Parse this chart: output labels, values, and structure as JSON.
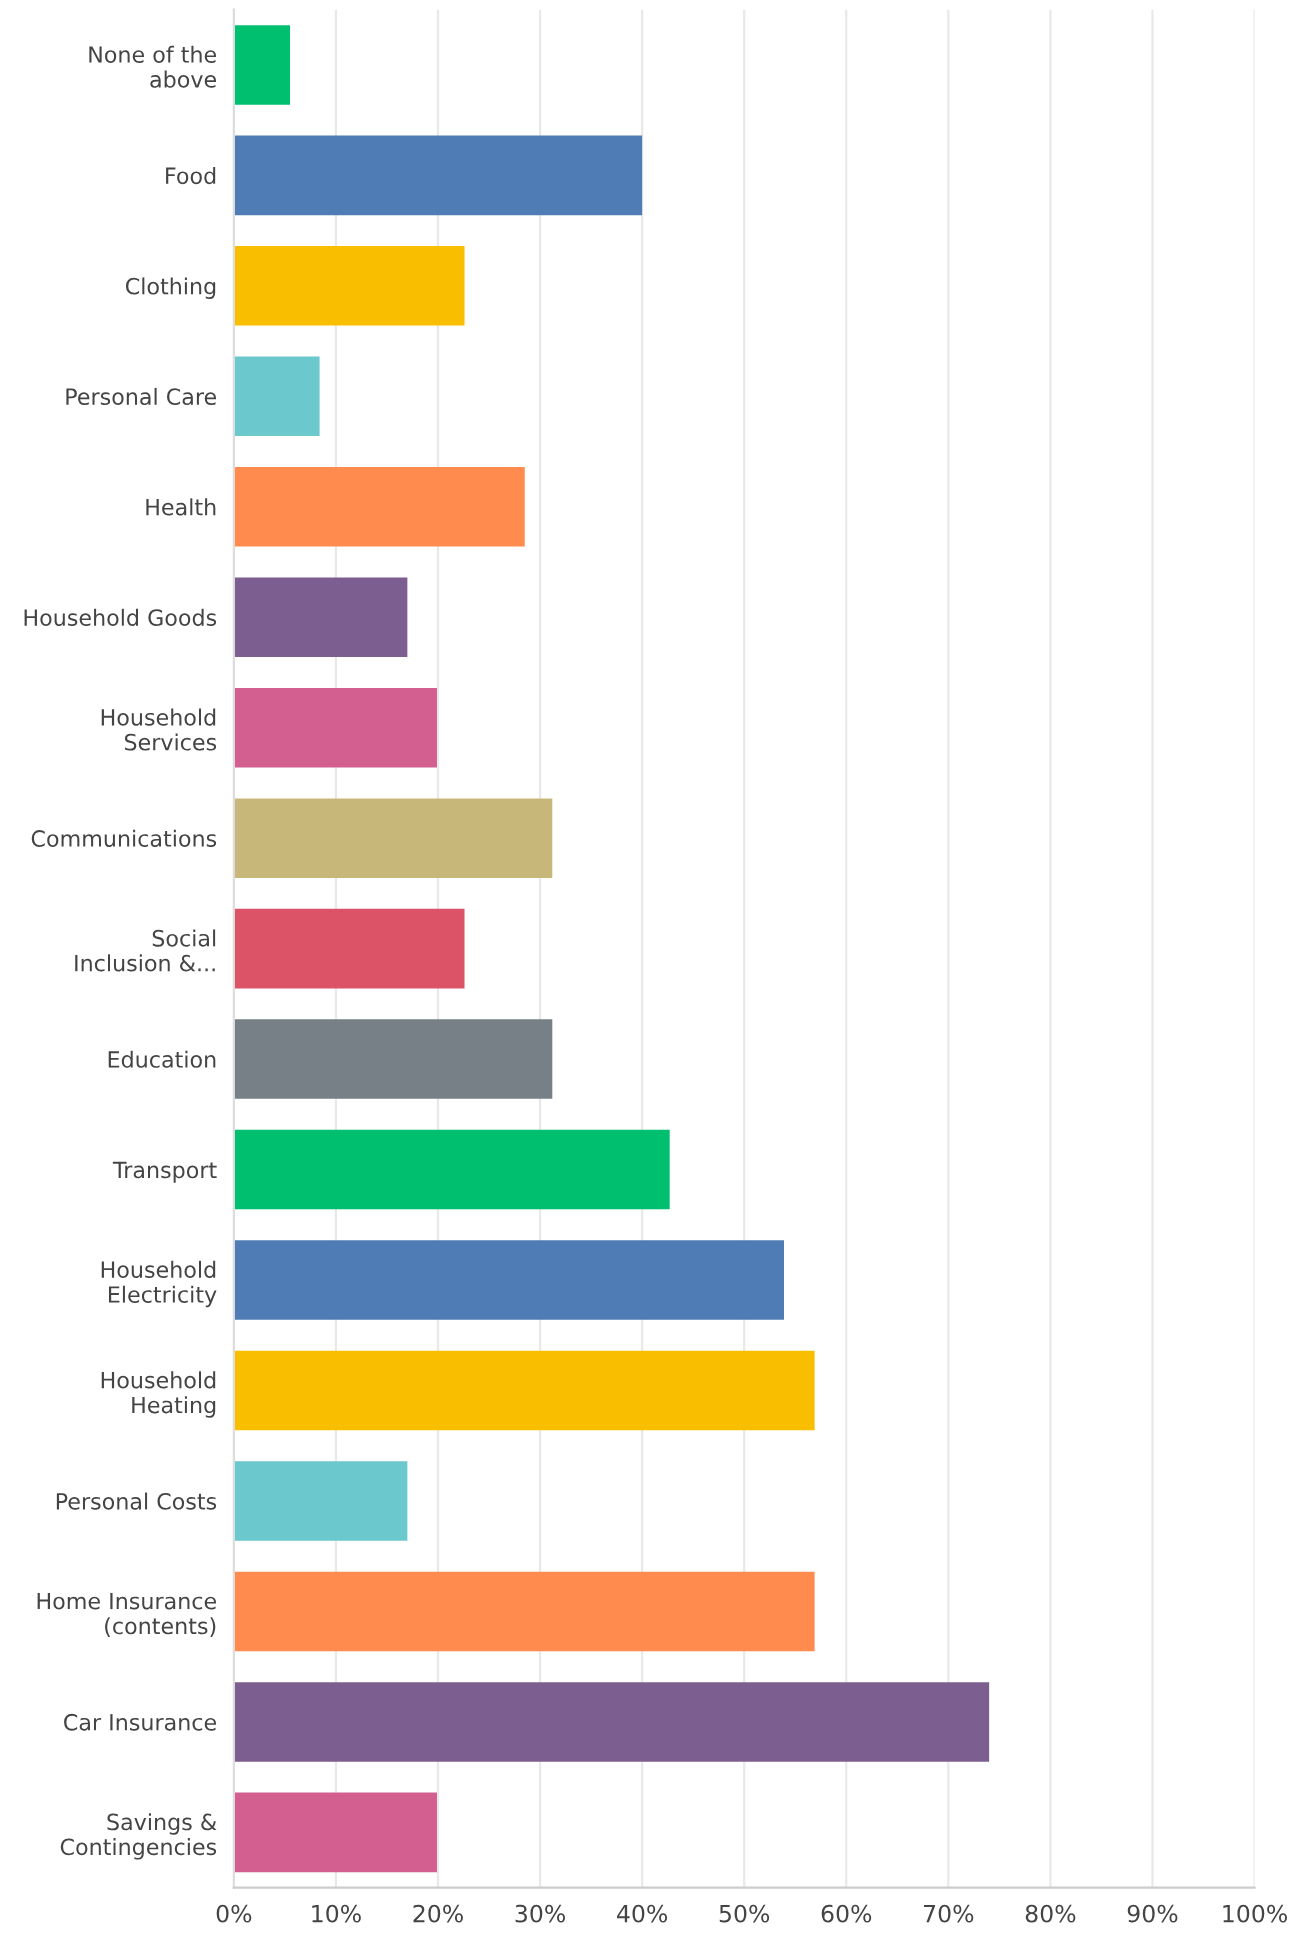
{
  "chart_data": {
    "type": "bar",
    "orientation": "horizontal",
    "categories": [
      "None of the\nabove",
      "Food",
      "Clothing",
      "Personal Care",
      "Health",
      "Household Goods",
      "Household\nServices",
      "Communications",
      "Social\nInclusion &...",
      "Education",
      "Transport",
      "Household\nElectricity",
      "Household\nHeating",
      "Personal Costs",
      "Home Insurance\n(contents)",
      "Car Insurance",
      "Savings &\nContingencies"
    ],
    "values": [
      5.5,
      40,
      22.6,
      8.4,
      28.5,
      17,
      19.9,
      31.2,
      22.6,
      31.2,
      42.7,
      53.9,
      56.9,
      17,
      56.9,
      74,
      19.9
    ],
    "colors": [
      "#00bf6f",
      "#507cb6",
      "#f9be00",
      "#6bc8cd",
      "#ff8b4f",
      "#7d5e90",
      "#d25f90",
      "#c7b879",
      "#dc5368",
      "#768086",
      "#00bf6f",
      "#507cb6",
      "#f9be00",
      "#6bc8cd",
      "#ff8b4f",
      "#7d5e90",
      "#d25f90"
    ],
    "xlim": [
      0,
      100
    ],
    "xticks": [
      {
        "value": 0,
        "label": "0%"
      },
      {
        "value": 10,
        "label": "10%"
      },
      {
        "value": 20,
        "label": "20%"
      },
      {
        "value": 30,
        "label": "30%"
      },
      {
        "value": 40,
        "label": "40%"
      },
      {
        "value": 50,
        "label": "50%"
      },
      {
        "value": 60,
        "label": "60%"
      },
      {
        "value": 70,
        "label": "70%"
      },
      {
        "value": 80,
        "label": "80%"
      },
      {
        "value": 90,
        "label": "90%"
      },
      {
        "value": 100,
        "label": "100%"
      }
    ],
    "grid": "x"
  }
}
